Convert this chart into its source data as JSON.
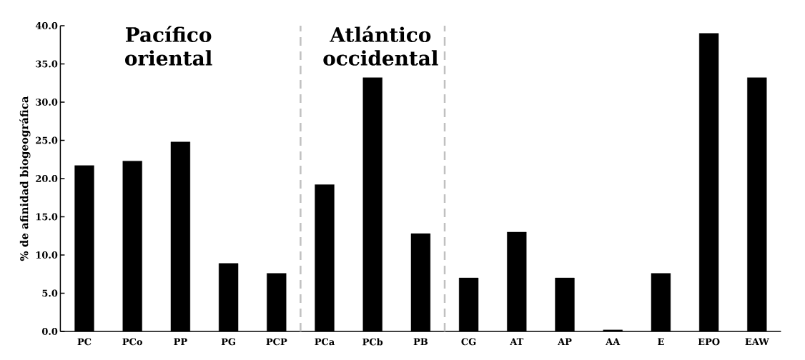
{
  "chart_data": {
    "type": "bar",
    "ylabel": "% de afinidad biogeográfica",
    "categories": [
      "PC",
      "PCo",
      "PP",
      "PG",
      "PCP",
      "PCa",
      "PCb",
      "PB",
      "CG",
      "AT",
      "AP",
      "AA",
      "E",
      "EPO",
      "EAW"
    ],
    "values": [
      21.7,
      22.3,
      24.8,
      8.9,
      7.6,
      19.2,
      33.2,
      12.8,
      7.0,
      13.0,
      7.0,
      0.2,
      7.6,
      39.0,
      33.2
    ],
    "color": "#000000",
    "ylim": [
      0,
      40
    ],
    "yticks": [
      {
        "value": 0,
        "label": "0.0"
      },
      {
        "value": 5,
        "label": "5.0"
      },
      {
        "value": 10,
        "label": "10.0"
      },
      {
        "value": 15,
        "label": "15.0"
      },
      {
        "value": 20,
        "label": "20.0"
      },
      {
        "value": 25,
        "label": "25.0"
      },
      {
        "value": 30,
        "label": "30.0"
      },
      {
        "value": 35,
        "label": "35.0"
      },
      {
        "value": 40,
        "label": "40.0"
      }
    ],
    "annotations": [
      "Pacífico oriental",
      "Atlántico occidental"
    ],
    "grid": false
  }
}
